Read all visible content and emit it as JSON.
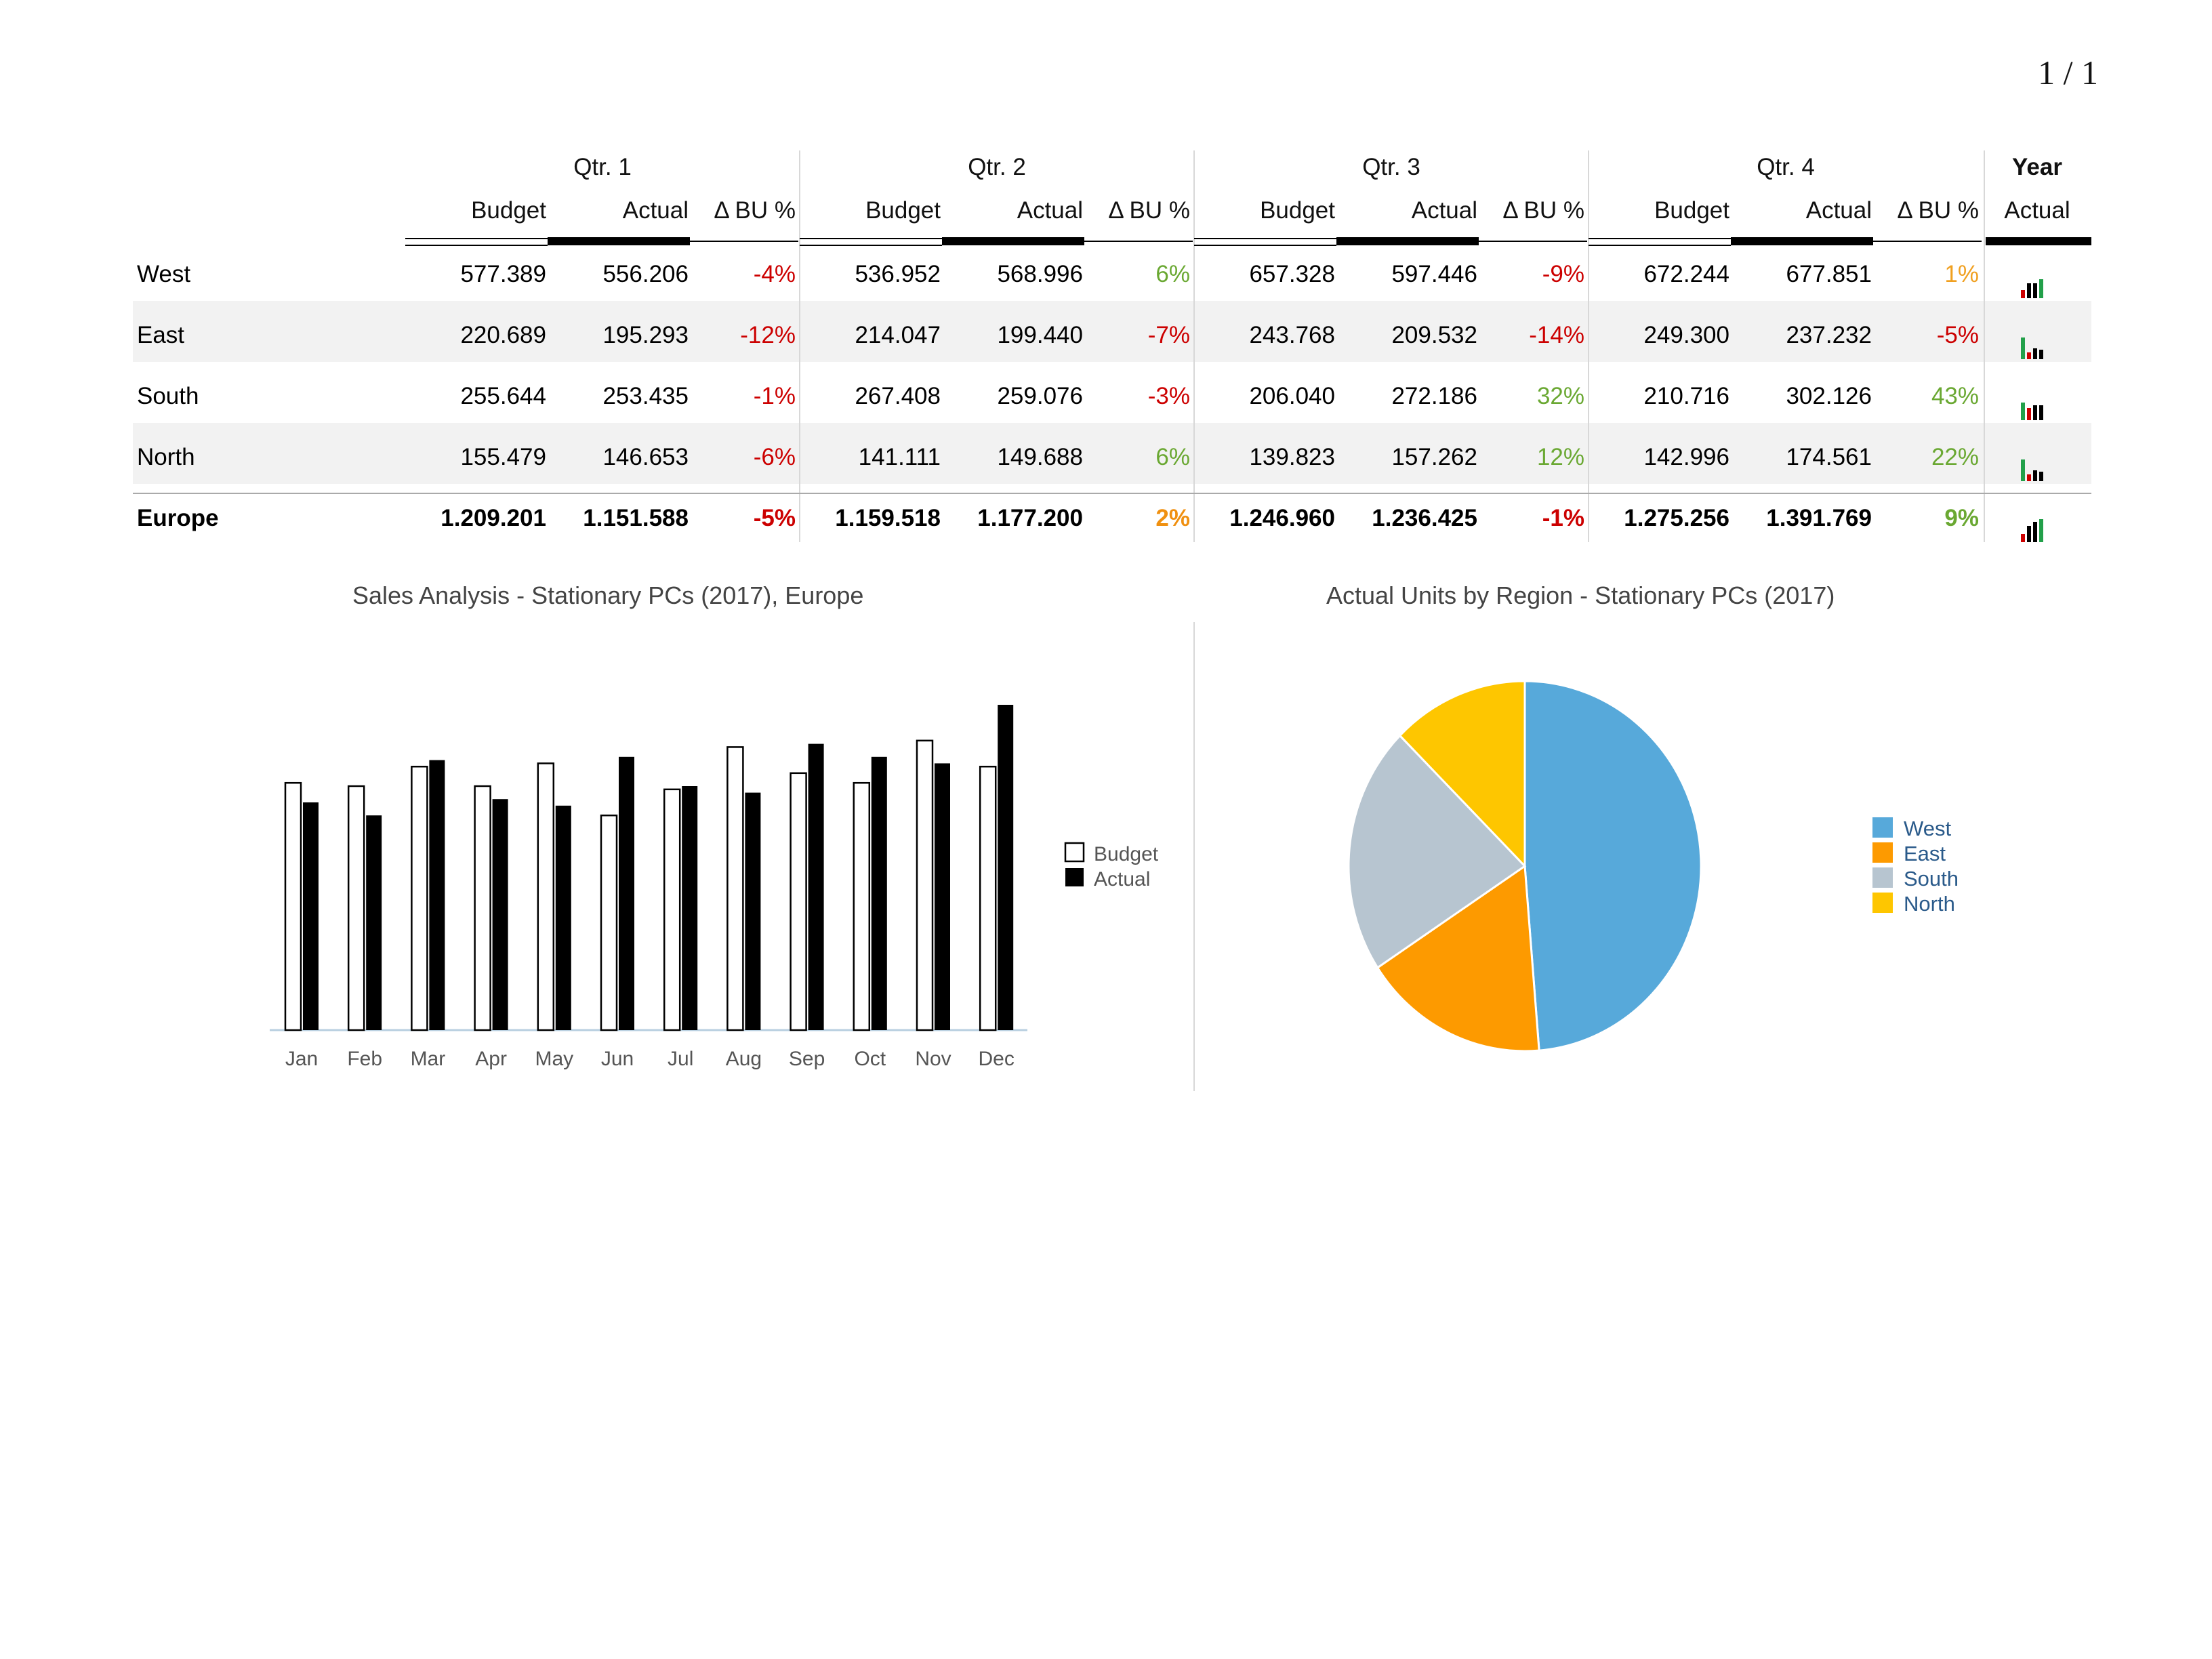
{
  "page_number": "1 / 1",
  "table": {
    "quarters": [
      "Qtr. 1",
      "Qtr. 2",
      "Qtr. 3",
      "Qtr. 4"
    ],
    "year_label": "Year",
    "sub_headers": [
      "Budget",
      "Actual",
      "Δ BU %"
    ],
    "year_sub_header": "Actual",
    "rows": [
      {
        "region": "West",
        "bold": false,
        "cells": [
          [
            "577.389",
            "556.206",
            "-4%"
          ],
          [
            "536.952",
            "568.996",
            "6%"
          ],
          [
            "657.328",
            "597.446",
            "-9%"
          ],
          [
            "672.244",
            "677.851",
            "1%"
          ]
        ],
        "delta_colors": [
          "#cc0000",
          "#6aa832",
          "#cc0000",
          "#f0a020"
        ],
        "spark": [
          "#cc0000",
          "#000000",
          "#000000",
          "#22a04a"
        ]
      },
      {
        "region": "East",
        "bold": false,
        "cells": [
          [
            "220.689",
            "195.293",
            "-12%"
          ],
          [
            "214.047",
            "199.440",
            "-7%"
          ],
          [
            "243.768",
            "209.532",
            "-14%"
          ],
          [
            "249.300",
            "237.232",
            "-5%"
          ]
        ],
        "delta_colors": [
          "#cc0000",
          "#cc0000",
          "#cc0000",
          "#cc0000"
        ],
        "spark": [
          "#22a04a",
          "#cc0000",
          "#000000",
          "#000000"
        ]
      },
      {
        "region": "South",
        "bold": false,
        "cells": [
          [
            "255.644",
            "253.435",
            "-1%"
          ],
          [
            "267.408",
            "259.076",
            "-3%"
          ],
          [
            "206.040",
            "272.186",
            "32%"
          ],
          [
            "210.716",
            "302.126",
            "43%"
          ]
        ],
        "delta_colors": [
          "#cc0000",
          "#cc0000",
          "#6aa832",
          "#6aa832"
        ],
        "spark": [
          "#22a04a",
          "#cc0000",
          "#000000",
          "#000000"
        ]
      },
      {
        "region": "North",
        "bold": false,
        "cells": [
          [
            "155.479",
            "146.653",
            "-6%"
          ],
          [
            "141.111",
            "149.688",
            "6%"
          ],
          [
            "139.823",
            "157.262",
            "12%"
          ],
          [
            "142.996",
            "174.561",
            "22%"
          ]
        ],
        "delta_colors": [
          "#cc0000",
          "#6aa832",
          "#6aa832",
          "#6aa832"
        ],
        "spark": [
          "#22a04a",
          "#cc0000",
          "#000000",
          "#000000"
        ]
      },
      {
        "region": "Europe",
        "bold": true,
        "cells": [
          [
            "1.209.201",
            "1.151.588",
            "-5%"
          ],
          [
            "1.159.518",
            "1.177.200",
            "2%"
          ],
          [
            "1.246.960",
            "1.236.425",
            "-1%"
          ],
          [
            "1.275.256",
            "1.391.769",
            "9%"
          ]
        ],
        "delta_colors": [
          "#cc0000",
          "#f09010",
          "#cc0000",
          "#6aa832"
        ],
        "spark": [
          "#cc0000",
          "#000000",
          "#000000",
          "#22a04a"
        ]
      }
    ]
  },
  "chart_data": [
    {
      "type": "bar",
      "title": "Sales Analysis - Stationary PCs (2017), Europe",
      "categories": [
        "Jan",
        "Feb",
        "Mar",
        "Apr",
        "May",
        "Jun",
        "Jul",
        "Aug",
        "Sep",
        "Oct",
        "Nov",
        "Dec"
      ],
      "series": [
        {
          "name": "Budget",
          "values": [
            76,
            75,
            81,
            75,
            82,
            66,
            74,
            87,
            79,
            76,
            89,
            81
          ]
        },
        {
          "name": "Actual",
          "values": [
            70,
            66,
            83,
            71,
            69,
            84,
            75,
            73,
            88,
            84,
            82,
            100
          ]
        }
      ],
      "legend": "right",
      "grid": false
    },
    {
      "type": "pie",
      "title": "Actual Units by Region - Stationary PCs (2017)",
      "labels": [
        "West",
        "East",
        "South",
        "North"
      ],
      "values": [
        677.851,
        237.232,
        302.126,
        174.561
      ],
      "colors": [
        "#57a9da",
        "#fd9a00",
        "#b7c5d0",
        "#fec600"
      ],
      "legend": "right"
    }
  ]
}
